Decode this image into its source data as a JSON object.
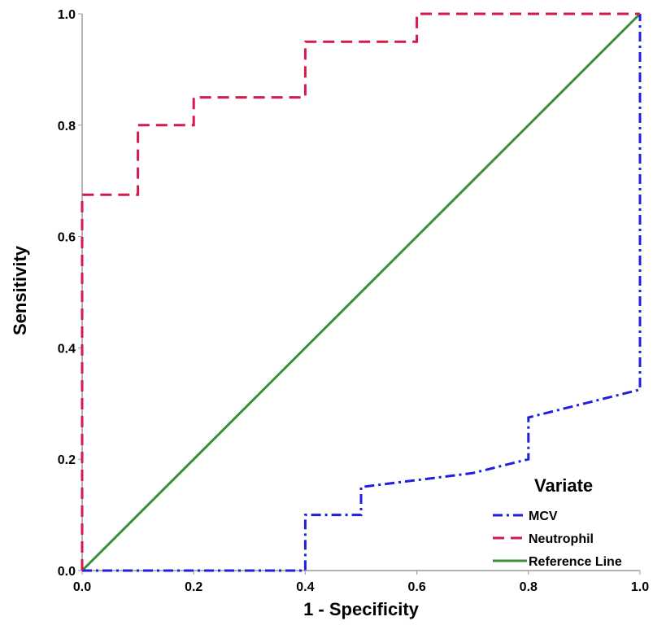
{
  "chart_data": {
    "type": "line",
    "title": "",
    "xlabel": "1 - Specificity",
    "ylabel": "Sensitivity",
    "xlim": [
      0,
      1
    ],
    "ylim": [
      0,
      1
    ],
    "x_ticks": [
      "0.0",
      "0.2",
      "0.4",
      "0.6",
      "0.8",
      "1.0"
    ],
    "y_ticks": [
      "0.0",
      "0.2",
      "0.4",
      "0.6",
      "0.8",
      "1.0"
    ],
    "grid": false,
    "legend": {
      "title": "Variate",
      "placement": "bottom-right",
      "entries": [
        "MCV",
        "Neutrophil",
        "Reference Line"
      ]
    },
    "series": [
      {
        "name": "MCV",
        "color": "#1f1fe0",
        "line_style": "dash-dot",
        "x": [
          0.0,
          0.4,
          0.4,
          0.5,
          0.5,
          0.7,
          0.8,
          0.8,
          1.0,
          1.0
        ],
        "y": [
          0.0,
          0.0,
          0.1,
          0.1,
          0.15,
          0.175,
          0.2,
          0.275,
          0.325,
          1.0
        ]
      },
      {
        "name": "Neutrophil",
        "color": "#d21a4b",
        "line_style": "dash",
        "x": [
          0.0,
          0.0,
          0.1,
          0.1,
          0.2,
          0.2,
          0.4,
          0.4,
          0.6,
          0.6,
          1.0
        ],
        "y": [
          0.0,
          0.675,
          0.675,
          0.8,
          0.8,
          0.85,
          0.85,
          0.95,
          0.95,
          1.0,
          1.0
        ]
      },
      {
        "name": "Reference Line",
        "color": "#3a8f3a",
        "line_style": "solid",
        "x": [
          0.0,
          1.0
        ],
        "y": [
          0.0,
          1.0
        ]
      }
    ]
  }
}
